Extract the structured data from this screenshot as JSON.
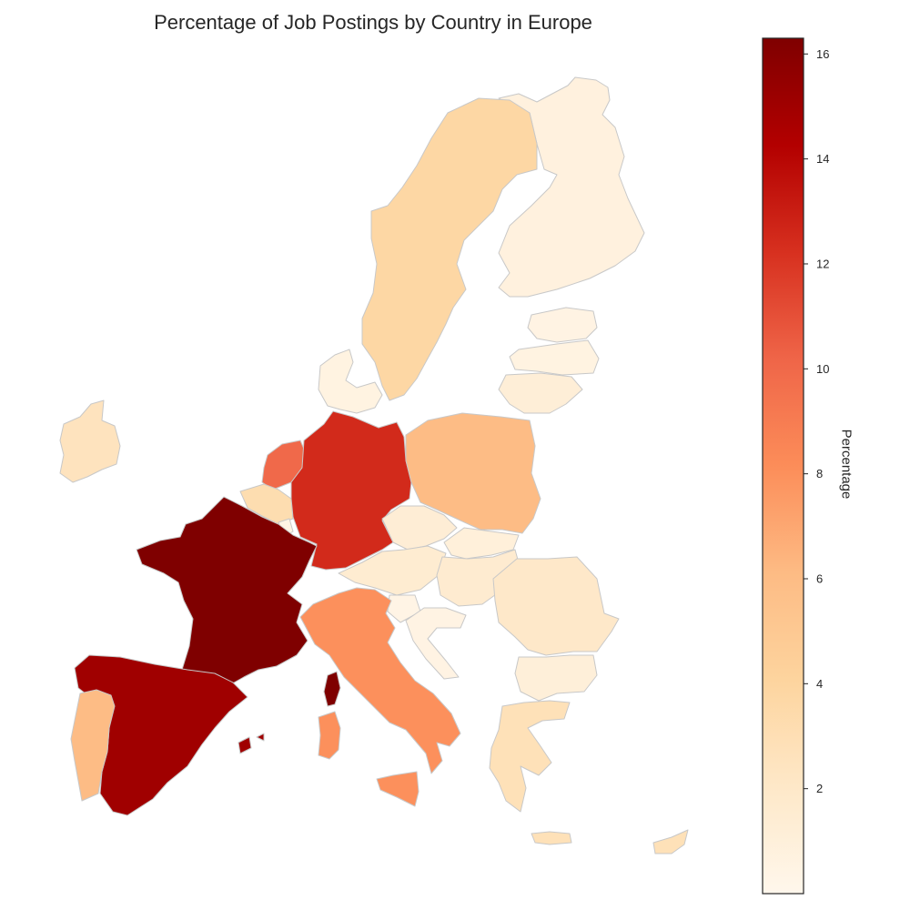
{
  "title": "Percentage of Job Postings by Country in Europe",
  "colorbar": {
    "label": "Percentage",
    "min": 0,
    "max": 16.3,
    "ticks": [
      2,
      4,
      6,
      8,
      10,
      12,
      14,
      16
    ],
    "colormap": "OrRd",
    "stops": [
      "#fff7ec",
      "#fee8c8",
      "#fdd49e",
      "#fdbb84",
      "#fc8d59",
      "#ef6548",
      "#d7301f",
      "#b30000",
      "#7f0000"
    ]
  },
  "chart_data": {
    "type": "choropleth",
    "title": "Percentage of Job Postings by Country in Europe",
    "value_label": "Percentage",
    "range": [
      0,
      16.3
    ],
    "regions": [
      {
        "name": "France",
        "value": 16.3
      },
      {
        "name": "Spain",
        "value": 15.0
      },
      {
        "name": "Germany",
        "value": 12.5
      },
      {
        "name": "Netherlands",
        "value": 10.0
      },
      {
        "name": "Italy",
        "value": 8.0
      },
      {
        "name": "Poland",
        "value": 6.0
      },
      {
        "name": "Portugal",
        "value": 6.0
      },
      {
        "name": "Sweden",
        "value": 3.8
      },
      {
        "name": "Belgium",
        "value": 3.2
      },
      {
        "name": "Greece",
        "value": 2.8
      },
      {
        "name": "Ireland",
        "value": 2.5
      },
      {
        "name": "Romania",
        "value": 2.0
      },
      {
        "name": "Hungary",
        "value": 1.6
      },
      {
        "name": "Austria",
        "value": 1.5
      },
      {
        "name": "Czechia",
        "value": 1.3
      },
      {
        "name": "Lithuania",
        "value": 1.2
      },
      {
        "name": "Bulgaria",
        "value": 1.1
      },
      {
        "name": "Cyprus",
        "value": 2.8
      },
      {
        "name": "Slovakia",
        "value": 1.0
      },
      {
        "name": "Finland",
        "value": 0.8
      },
      {
        "name": "Denmark",
        "value": 0.6
      },
      {
        "name": "Latvia",
        "value": 0.6
      },
      {
        "name": "Estonia",
        "value": 0.5
      },
      {
        "name": "Croatia",
        "value": 0.5
      },
      {
        "name": "Slovenia",
        "value": 0.4
      },
      {
        "name": "Luxembourg",
        "value": 0.4
      }
    ]
  }
}
